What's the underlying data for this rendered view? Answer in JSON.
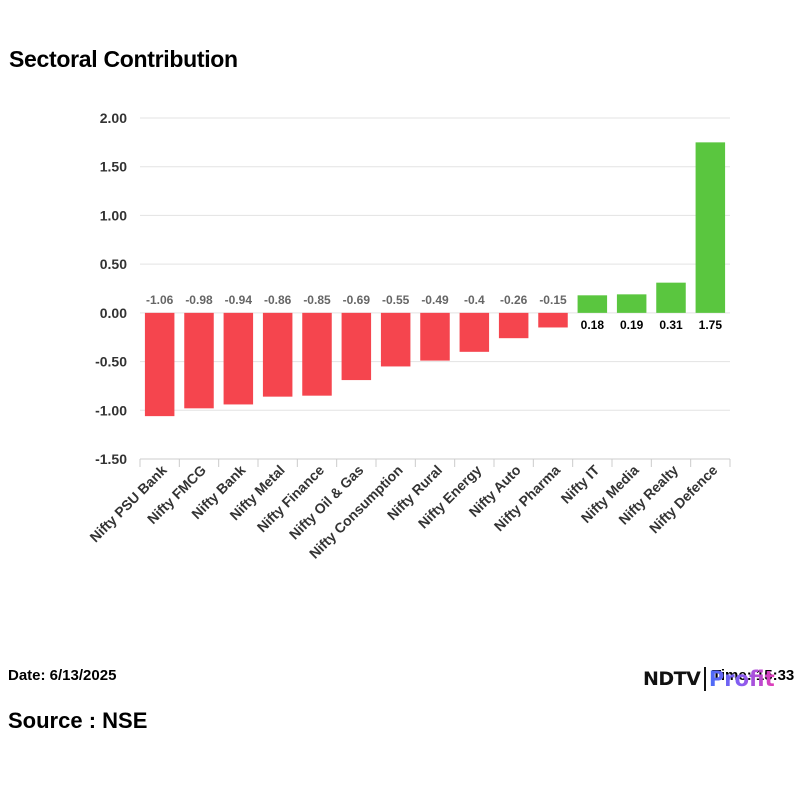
{
  "title": "Sectoral Contribution",
  "footer": {
    "date_text": "Date: 6/13/2025",
    "time_text": "Time: 15:33",
    "source_text": "Source : NSE",
    "logo_primary": "NDTV",
    "logo_secondary": "Profit"
  },
  "colors": {
    "negative": "#f5454e",
    "positive": "#5ac63f",
    "grid": "#e3e3e3",
    "tick_text": "#333333",
    "neg_label": "#666666",
    "pos_label": "#000000"
  },
  "chart_data": {
    "type": "bar",
    "title": "Sectoral Contribution",
    "categories": [
      "Nifty PSU Bank",
      "Nifty FMCG",
      "Nifty Bank",
      "Nifty Metal",
      "Nifty Finance",
      "Nifty Oil & Gas",
      "Nifty Consumption",
      "Nifty Rural",
      "Nifty Energy",
      "Nifty Auto",
      "Nifty Pharma",
      "Nifty IT",
      "Nifty Media",
      "Nifty Realty",
      "Nifty Defence"
    ],
    "values": [
      -1.06,
      -0.98,
      -0.94,
      -0.86,
      -0.85,
      -0.69,
      -0.55,
      -0.49,
      -0.4,
      -0.26,
      -0.15,
      0.18,
      0.19,
      0.31,
      1.75
    ],
    "data_labels": [
      "-1.06",
      "-0.98",
      "-0.94",
      "-0.86",
      "-0.85",
      "-0.69",
      "-0.55",
      "-0.49",
      "-0.4",
      "-0.26",
      "-0.15",
      "0.18",
      "0.19",
      "0.31",
      "1.75"
    ],
    "ylim": [
      -1.5,
      2.0
    ],
    "yticks": [
      "-1.50",
      "-1.00",
      "-0.50",
      "0.00",
      "0.50",
      "1.00",
      "1.50",
      "2.00"
    ],
    "grid": true,
    "legend": "none",
    "xlabel": "",
    "ylabel": ""
  }
}
